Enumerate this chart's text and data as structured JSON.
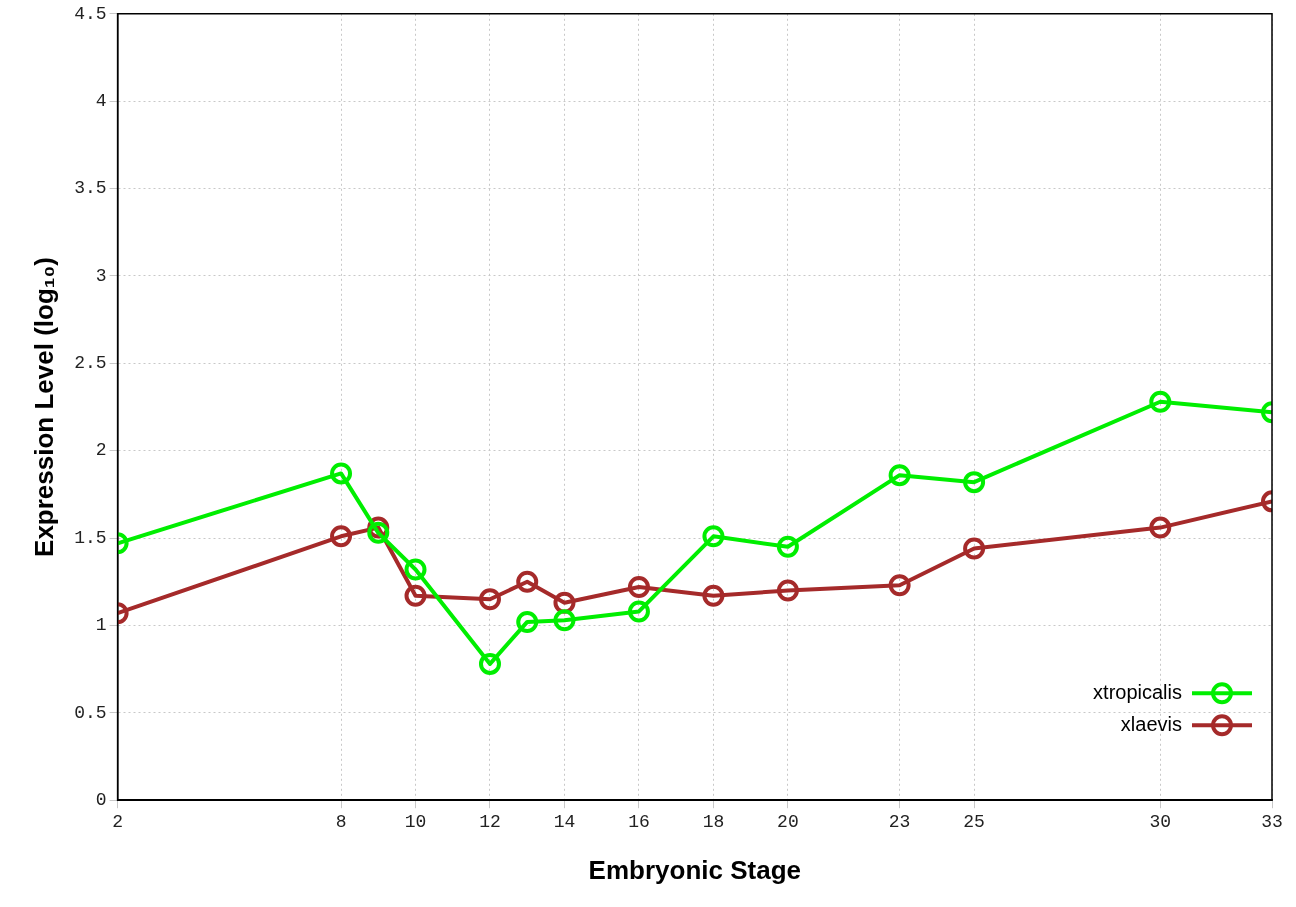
{
  "chart_data": {
    "type": "line",
    "xlabel": "Embryonic Stage",
    "ylabel": "Expression Level (log₁₀)",
    "xlim": [
      2,
      33
    ],
    "xticks": [
      2,
      8,
      10,
      12,
      14,
      16,
      18,
      20,
      23,
      25,
      30,
      33
    ],
    "ylim": [
      0,
      4.5
    ],
    "yticks": [
      0,
      0.5,
      1,
      1.5,
      2,
      2.5,
      3,
      3.5,
      4,
      4.5
    ],
    "grid": true,
    "legend": "bottom right",
    "marker": "circle",
    "line_style": "solid",
    "series": [
      {
        "name": "xtropicalis",
        "color": "#00ee00",
        "x": [
          2,
          8,
          9,
          10,
          12,
          13,
          14,
          16,
          18,
          20,
          23,
          25,
          30,
          33
        ],
        "values": [
          1.47,
          1.87,
          1.53,
          1.32,
          0.78,
          1.02,
          1.03,
          1.08,
          1.51,
          1.45,
          1.86,
          1.82,
          2.28,
          2.22
        ]
      },
      {
        "name": "xlaevis",
        "color": "#a52a2a",
        "x": [
          2,
          8,
          9,
          10,
          12,
          13,
          14,
          16,
          18,
          20,
          23,
          25,
          30,
          33
        ],
        "values": [
          1.07,
          1.51,
          1.56,
          1.17,
          1.15,
          1.25,
          1.13,
          1.22,
          1.17,
          1.2,
          1.23,
          1.44,
          1.56,
          1.71
        ]
      }
    ]
  }
}
